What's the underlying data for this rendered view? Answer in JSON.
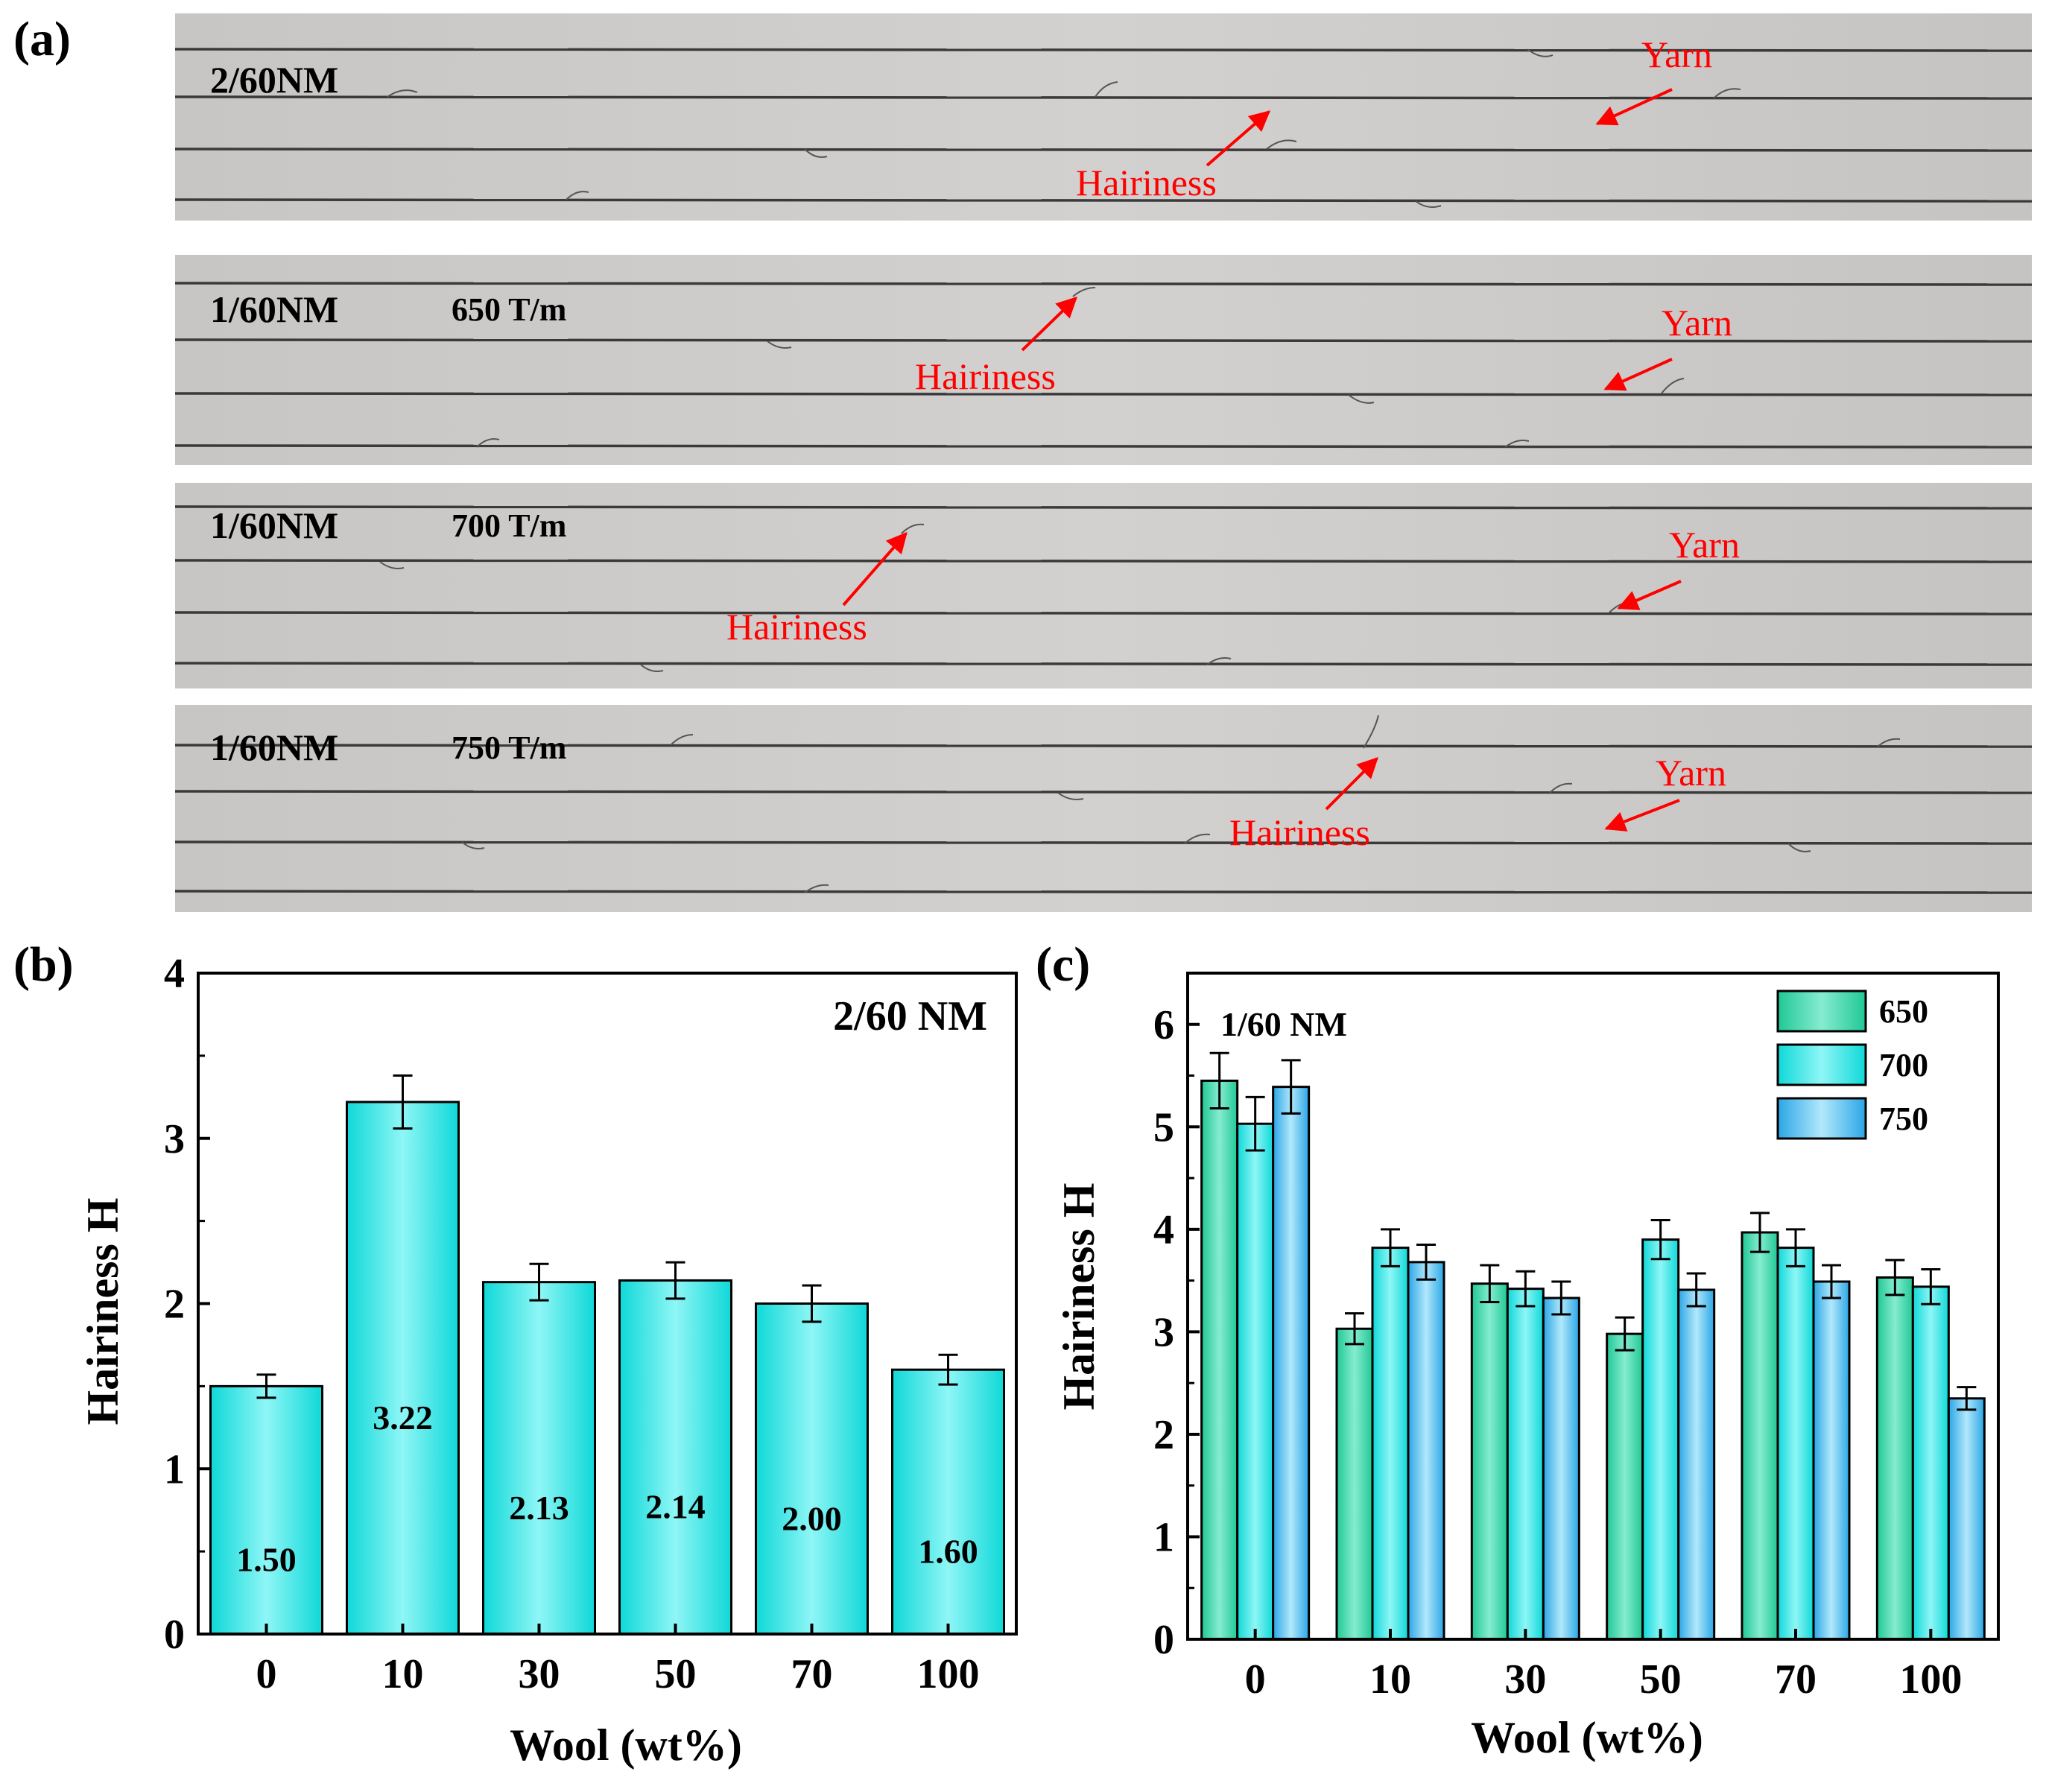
{
  "panel_a": {
    "label": "(a)",
    "photos": [
      {
        "spec": "2/60NM",
        "twist": "",
        "hairiness_label": "Hairiness",
        "yarn_label": "Yarn"
      },
      {
        "spec": "1/60NM",
        "twist": "650 T/m",
        "hairiness_label": "Hairiness",
        "yarn_label": "Yarn"
      },
      {
        "spec": "1/60NM",
        "twist": "700 T/m",
        "hairiness_label": "Hairiness",
        "yarn_label": "Yarn"
      },
      {
        "spec": "1/60NM",
        "twist": "750 T/m",
        "hairiness_label": "Hairiness",
        "yarn_label": "Yarn"
      }
    ]
  },
  "panel_b": {
    "label": "(b)"
  },
  "panel_c": {
    "label": "(c)"
  },
  "colors": {
    "bar_b": "#1ee6e6",
    "series_650": "#2ed9a8",
    "series_700": "#1ee6e6",
    "series_750": "#39b8ef",
    "annotation": "#ff0000",
    "photo_bg": "#c9c7c5",
    "yarn_line": "#3a3a3a"
  },
  "chart_data": [
    {
      "id": "b",
      "type": "bar",
      "annotation": "2/60 NM",
      "categories": [
        "0",
        "10",
        "30",
        "50",
        "70",
        "100"
      ],
      "values": [
        1.5,
        3.22,
        2.13,
        2.14,
        2.0,
        1.6
      ],
      "value_labels": [
        "1.50",
        "3.22",
        "2.13",
        "2.14",
        "2.00",
        "1.60"
      ],
      "errors": [
        0.07,
        0.16,
        0.11,
        0.11,
        0.11,
        0.09
      ],
      "xlabel": "Wool (wt%)",
      "ylabel": "Hairiness H",
      "ylim": [
        0,
        4
      ],
      "yticks": [
        "0",
        "1",
        "2",
        "3",
        "4"
      ]
    },
    {
      "id": "c",
      "type": "bar",
      "annotation": "1/60 NM",
      "categories": [
        "0",
        "10",
        "30",
        "50",
        "70",
        "100"
      ],
      "series": [
        {
          "name": "650",
          "values": [
            5.45,
            3.03,
            3.47,
            2.98,
            3.97,
            3.53
          ],
          "errors": [
            0.27,
            0.15,
            0.18,
            0.16,
            0.19,
            0.17
          ]
        },
        {
          "name": "700",
          "values": [
            5.03,
            3.82,
            3.42,
            3.9,
            3.82,
            3.44
          ],
          "errors": [
            0.26,
            0.18,
            0.17,
            0.19,
            0.18,
            0.17
          ]
        },
        {
          "name": "750",
          "values": [
            5.39,
            3.68,
            3.33,
            3.41,
            3.49,
            2.35
          ],
          "errors": [
            0.26,
            0.17,
            0.16,
            0.16,
            0.16,
            0.11
          ]
        }
      ],
      "xlabel": "Wool (wt%)",
      "ylabel": "Hairiness H",
      "ylim": [
        0,
        6.5
      ],
      "yticks": [
        "0",
        "1",
        "2",
        "3",
        "4",
        "5",
        "6"
      ],
      "legend": "top-right"
    }
  ]
}
